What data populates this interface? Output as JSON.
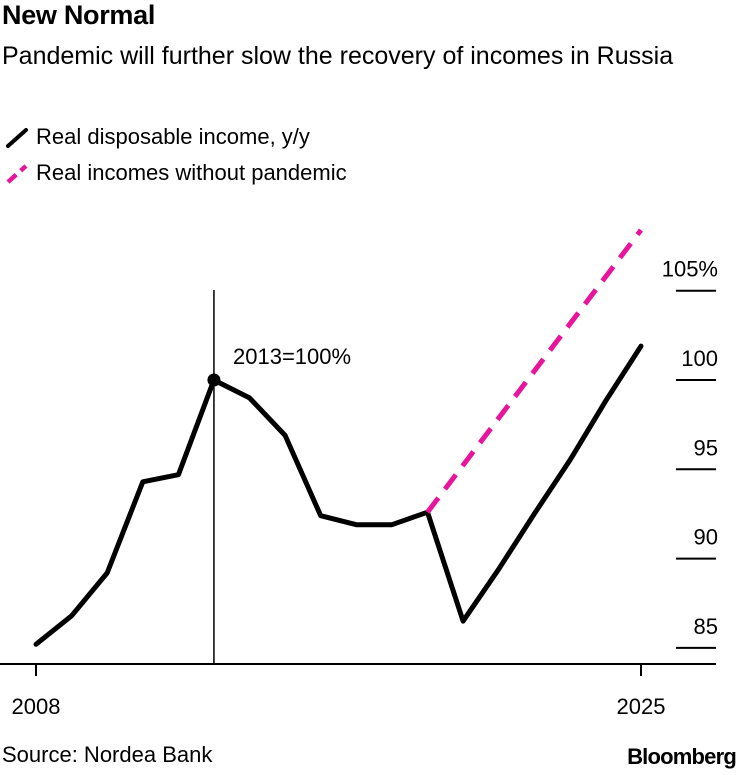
{
  "header": {
    "title": "New Normal",
    "subtitle": "Pandemic will further slow the recovery of incomes in Russia"
  },
  "legend": [
    {
      "label": "Real disposable income, y/y",
      "color": "#000000",
      "style": "solid"
    },
    {
      "label": "Real incomes without pandemic",
      "color": "#e6159b",
      "style": "dashed"
    }
  ],
  "footer": {
    "source": "Source: Nordea Bank",
    "brand": "Bloomberg"
  },
  "chart_data": {
    "type": "line",
    "x_tick_labels": [
      "2008",
      "2025"
    ],
    "xlim": [
      2008,
      2025
    ],
    "ylim": [
      84,
      105
    ],
    "y_ticks": [
      {
        "value": 85,
        "label": "85"
      },
      {
        "value": 90,
        "label": "90"
      },
      {
        "value": 95,
        "label": "95"
      },
      {
        "value": 100,
        "label": "100"
      },
      {
        "value": 105,
        "label": "105%"
      }
    ],
    "annotation": {
      "x": 2013,
      "y": 100,
      "label": "2013=100%"
    },
    "series": [
      {
        "name": "Real disposable income, y/y",
        "color": "#000000",
        "style": "solid",
        "x": [
          2008,
          2009,
          2010,
          2011,
          2012,
          2013,
          2014,
          2015,
          2016,
          2017,
          2018,
          2019,
          2020,
          2021,
          2022,
          2023,
          2024,
          2025
        ],
        "y": [
          85.2,
          86.8,
          89.2,
          94.3,
          94.7,
          100,
          99.0,
          96.9,
          92.4,
          91.9,
          91.9,
          92.6,
          86.5,
          89.4,
          92.5,
          95.5,
          98.8,
          101.9
        ]
      },
      {
        "name": "Real incomes without pandemic",
        "color": "#e6159b",
        "style": "dashed",
        "x": [
          2019,
          2025
        ],
        "y": [
          92.6,
          108.4
        ]
      }
    ]
  }
}
